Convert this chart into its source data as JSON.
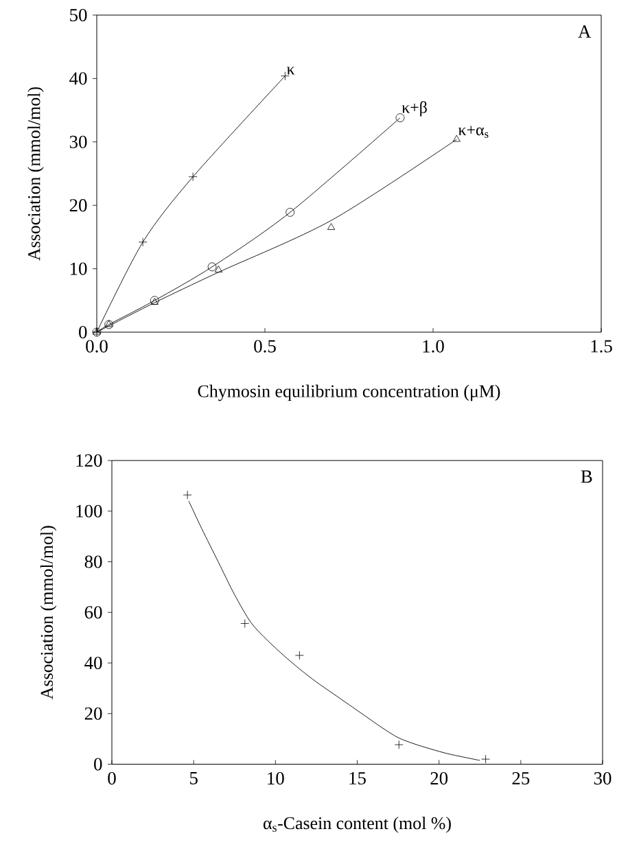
{
  "chart_data": [
    {
      "type": "scatter",
      "xlabel": "Chymosin equilibrium concentration (μM)",
      "ylabel": "Association (mmol/mol)",
      "xlim": [
        0,
        1.5
      ],
      "ylim": [
        0,
        50
      ],
      "xticks": [
        {
          "value": 0,
          "label": "0.0"
        },
        {
          "value": 0.5,
          "label": "0.5"
        },
        {
          "value": 1,
          "label": "1.0"
        },
        {
          "value": 1.5,
          "label": "1.5"
        }
      ],
      "yticks": [
        0,
        10,
        20,
        30,
        40,
        50
      ],
      "annotations": [
        "A"
      ],
      "series": [
        {
          "name": "κ",
          "marker": "cross",
          "color": "#000000",
          "x": [
            0,
            0.137,
            0.286,
            0.56
          ],
          "values": [
            0,
            14.2,
            24.5,
            40.4
          ]
        },
        {
          "name": "κ+β",
          "marker": "circle",
          "color": "#000000",
          "x": [
            0,
            0.036,
            0.172,
            0.343,
            0.575,
            0.902
          ],
          "values": [
            0,
            1.2,
            5.0,
            10.3,
            18.9,
            33.8
          ]
        },
        {
          "name": "κ+α$_{s}$",
          "marker": "triangle",
          "color": "#000000",
          "x": [
            0,
            0.036,
            0.172,
            0.362,
            0.697,
            1.07
          ],
          "values": [
            0,
            1.2,
            4.7,
            9.8,
            16.5,
            30.4
          ]
        },
        {
          "type": "line",
          "marker": "none",
          "color": "#000000",
          "x": [
            0,
            0.137,
            0.286,
            0.56
          ],
          "values": [
            0,
            14.2,
            24.5,
            40.4
          ]
        },
        {
          "type": "line",
          "marker": "none",
          "color": "#000000",
          "x": [
            0,
            0.036,
            0.172,
            0.343,
            0.575,
            0.902
          ],
          "values": [
            0,
            1.2,
            5.0,
            10.3,
            18.9,
            33.8
          ]
        },
        {
          "type": "line",
          "marker": "none",
          "color": "#000000",
          "x": [
            0,
            0.17,
            0.36,
            0.7,
            1.07
          ],
          "values": [
            0,
            4.6,
            9.4,
            17.7,
            30.4
          ]
        }
      ]
    },
    {
      "type": "scatter",
      "xlabel": "α$_{s}$-Casein content (mol %)",
      "ylabel": "Association (mmol/mol)",
      "xlim": [
        0,
        30
      ],
      "ylim": [
        0,
        120
      ],
      "xticks": [
        0,
        5,
        10,
        15,
        20,
        25,
        30
      ],
      "yticks": [
        0,
        20,
        40,
        60,
        80,
        100,
        120
      ],
      "annotations": [
        "B"
      ],
      "series": [
        {
          "marker": "cross",
          "color": "#000000",
          "x": [
            4.62,
            8.13,
            11.47,
            17.55,
            22.85
          ],
          "values": [
            106.4,
            55.6,
            43.0,
            7.7,
            2.0
          ]
        },
        {
          "type": "line",
          "marker": "none",
          "color": "#000000",
          "x": [
            4.7,
            5.5,
            6.5,
            7.5,
            8.5,
            9.5,
            10.5,
            11.5,
            12.5,
            13.5,
            14.5,
            15.5,
            16.5,
            17.5,
            18.5,
            19.5,
            20.5,
            21.5,
            22.5
          ],
          "values": [
            104,
            93,
            80,
            67,
            56,
            49,
            43,
            37.5,
            32.5,
            28,
            23.5,
            19,
            14.5,
            10.5,
            8,
            6,
            4.2,
            2.8,
            1.5
          ]
        }
      ]
    }
  ]
}
